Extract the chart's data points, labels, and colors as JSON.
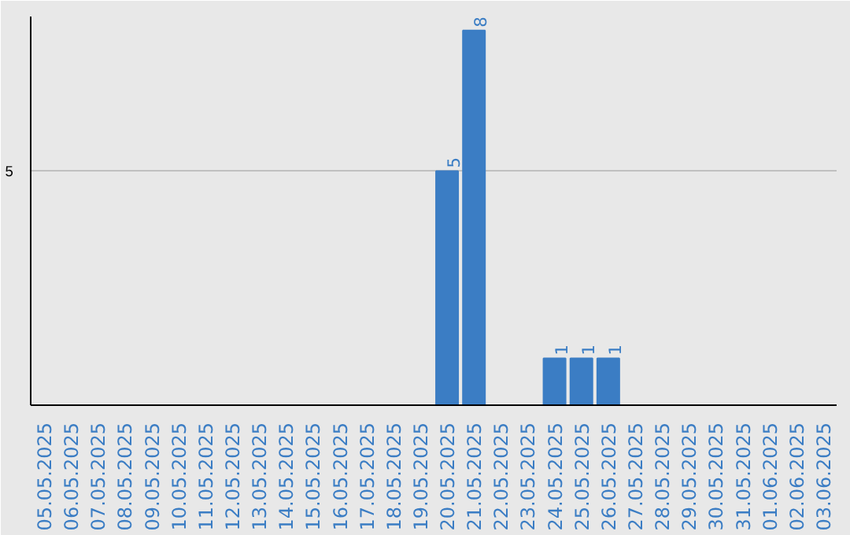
{
  "chart_data": {
    "type": "bar",
    "categories": [
      "05.05.2025",
      "06.05.2025",
      "07.05.2025",
      "08.05.2025",
      "09.05.2025",
      "10.05.2025",
      "11.05.2025",
      "12.05.2025",
      "13.05.2025",
      "14.05.2025",
      "15.05.2025",
      "16.05.2025",
      "17.05.2025",
      "18.05.2025",
      "19.05.2025",
      "20.05.2025",
      "21.05.2025",
      "22.05.2025",
      "23.05.2025",
      "24.05.2025",
      "25.05.2025",
      "26.05.2025",
      "27.05.2025",
      "28.05.2025",
      "29.05.2025",
      "30.05.2025",
      "31.05.2025",
      "01.06.2025",
      "02.06.2025",
      "03.06.2025"
    ],
    "values": [
      null,
      null,
      null,
      null,
      null,
      null,
      null,
      null,
      null,
      null,
      null,
      null,
      null,
      null,
      null,
      5,
      8,
      null,
      null,
      1,
      1,
      1,
      null,
      null,
      null,
      null,
      null,
      null,
      null,
      null
    ],
    "value_labels": [
      null,
      null,
      null,
      null,
      null,
      null,
      null,
      null,
      null,
      null,
      null,
      null,
      null,
      null,
      null,
      "5",
      "8",
      null,
      null,
      "1",
      "1",
      "1",
      null,
      null,
      null,
      null,
      null,
      null,
      null,
      null
    ],
    "color": "#3b7dc4",
    "ylim": [
      0,
      8.3
    ],
    "yticks": [
      {
        "value": 0,
        "label": null
      },
      5
    ],
    "grid": "y"
  }
}
